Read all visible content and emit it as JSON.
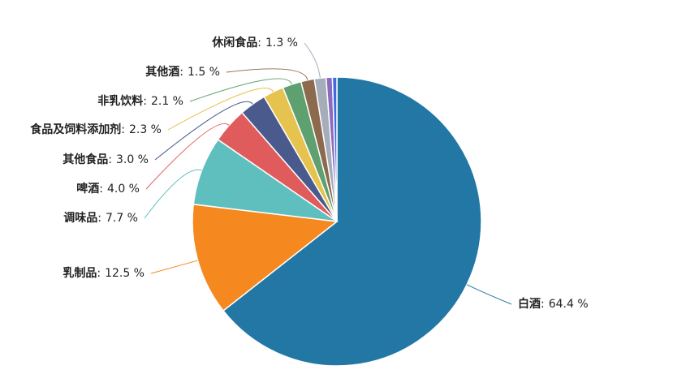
{
  "chart_data": {
    "type": "pie",
    "categories": [
      "白酒",
      "乳制品",
      "调味品",
      "啤酒",
      "其他食品",
      "食品及饲料添加剂",
      "非乳饮料",
      "其他酒",
      "休闲食品",
      null,
      null
    ],
    "values": [
      64.4,
      12.5,
      7.7,
      4.0,
      3.0,
      2.3,
      2.1,
      1.5,
      1.3,
      0.7,
      0.5
    ],
    "value_labels": [
      "64.4 %",
      "12.5 %",
      "7.7 %",
      "4.0 %",
      "3.0 %",
      "2.3 %",
      "2.1 %",
      "1.5 %",
      "1.3 %",
      null,
      null
    ],
    "label_separator": ":",
    "colors": [
      "#2377a4",
      "#f5891f",
      "#5fbfbf",
      "#e05c5c",
      "#4a5a8c",
      "#e6c24e",
      "#5fa071",
      "#8c6a4e",
      "#a5adba",
      "#8b6bbd",
      "#4169e1"
    ]
  }
}
